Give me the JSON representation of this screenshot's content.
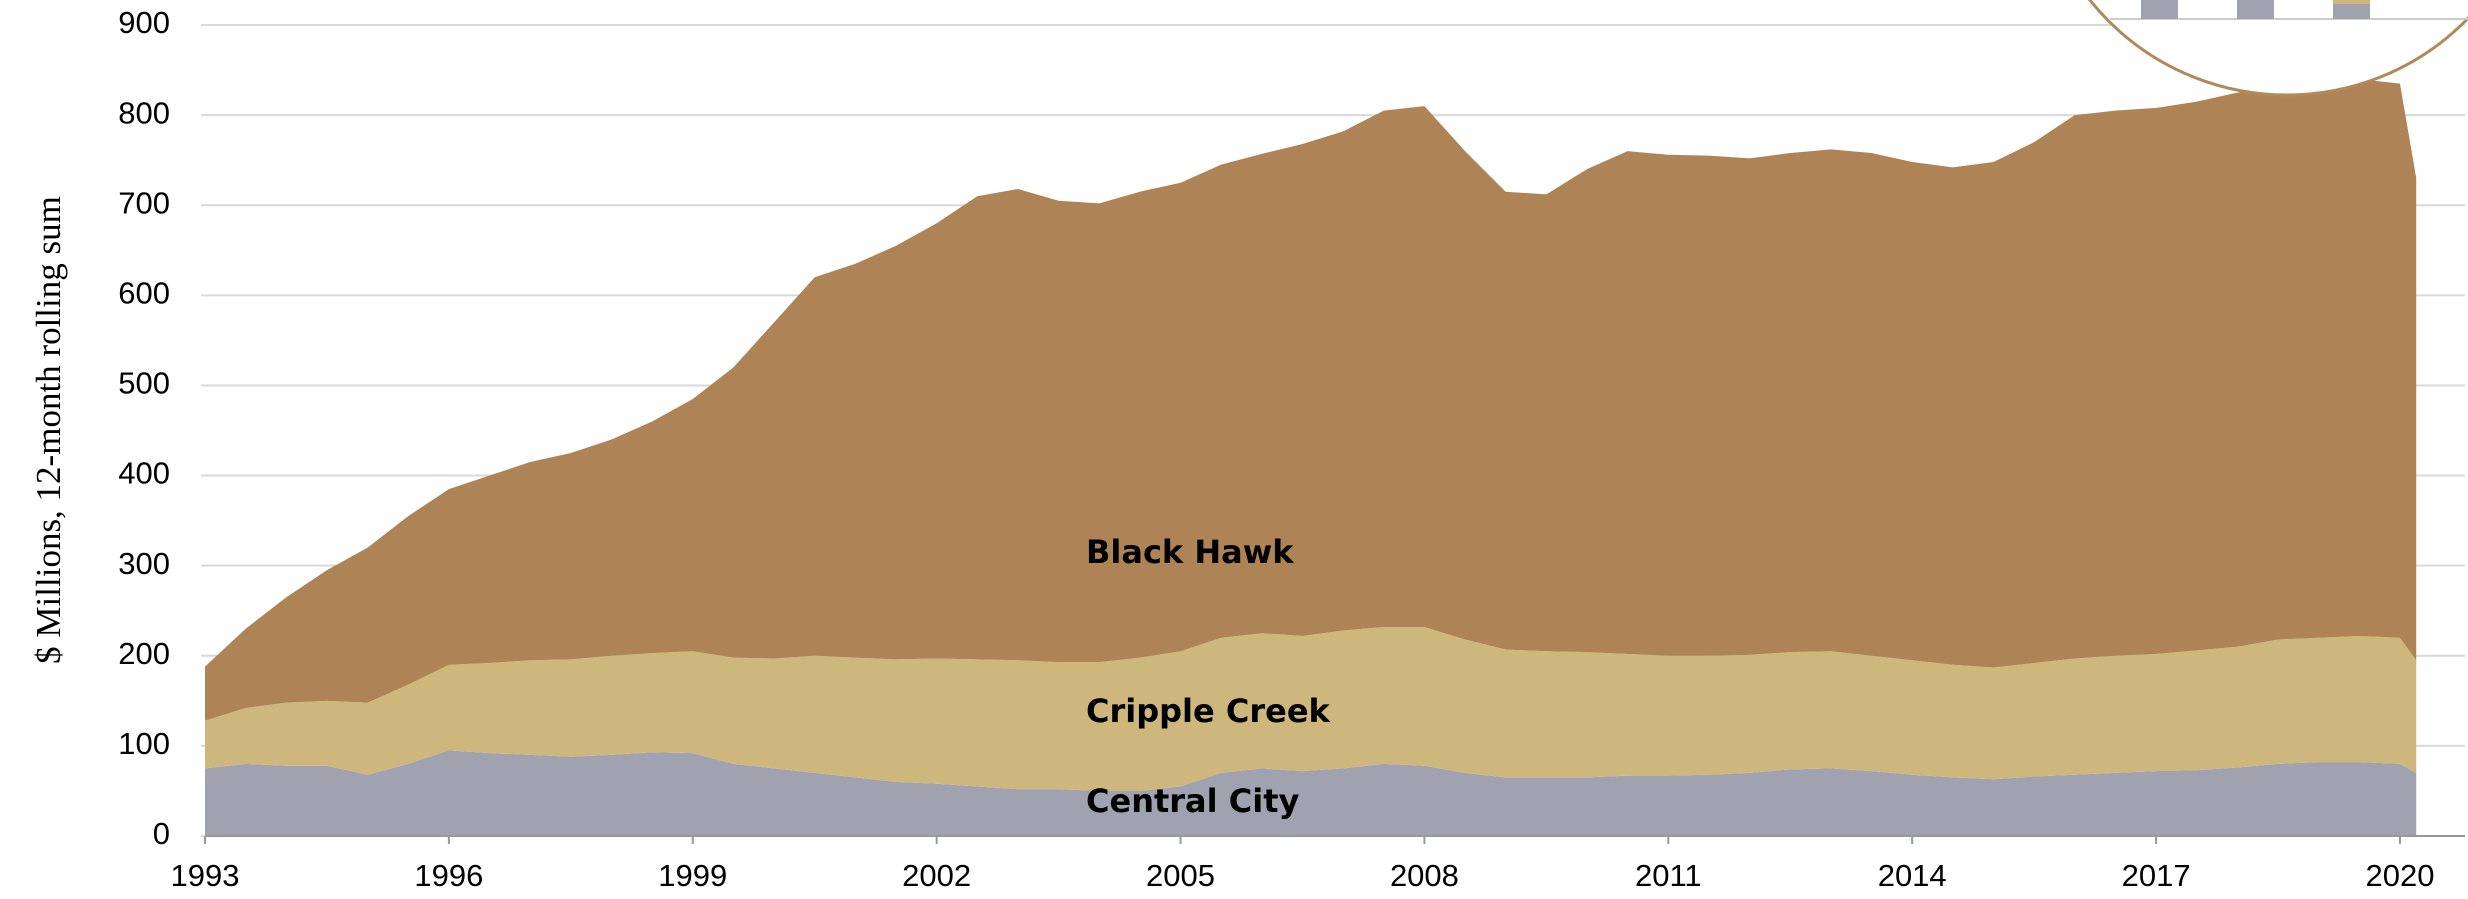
{
  "chart_data": {
    "type": "stacked-area",
    "ylabel": "$ Millions, 12-month rolling sum",
    "x": [
      1993.0,
      1993.5,
      1994.0,
      1994.5,
      1995.0,
      1995.5,
      1996.0,
      1996.5,
      1997.0,
      1997.5,
      1998.0,
      1998.5,
      1999.0,
      1999.5,
      2000.0,
      2000.5,
      2001.0,
      2001.5,
      2002.0,
      2002.5,
      2003.0,
      2003.5,
      2004.0,
      2004.5,
      2005.0,
      2005.5,
      2006.0,
      2006.5,
      2007.0,
      2007.5,
      2008.0,
      2008.5,
      2009.0,
      2009.5,
      2010.0,
      2010.5,
      2011.0,
      2011.5,
      2012.0,
      2012.5,
      2013.0,
      2013.5,
      2014.0,
      2014.5,
      2015.0,
      2015.5,
      2016.0,
      2016.5,
      2017.0,
      2017.5,
      2018.0,
      2018.5,
      2019.0,
      2019.5,
      2020.0,
      2020.2
    ],
    "series": [
      {
        "name": "Central City",
        "color": "#a0a2b0",
        "values": [
          75,
          80,
          78,
          78,
          68,
          80,
          95,
          92,
          90,
          88,
          90,
          93,
          92,
          80,
          75,
          70,
          65,
          60,
          58,
          55,
          52,
          52,
          50,
          50,
          55,
          70,
          75,
          72,
          75,
          80,
          78,
          70,
          65,
          65,
          65,
          67,
          67,
          68,
          70,
          74,
          75,
          72,
          68,
          65,
          63,
          66,
          68,
          70,
          72,
          73,
          76,
          80,
          82,
          82,
          80,
          70
        ]
      },
      {
        "name": "Cripple Creek",
        "color": "#cdb77c",
        "values": [
          53,
          62,
          70,
          72,
          80,
          88,
          95,
          100,
          105,
          108,
          110,
          110,
          113,
          118,
          122,
          130,
          133,
          136,
          139,
          141,
          143,
          141,
          143,
          148,
          150,
          150,
          150,
          150,
          153,
          152,
          154,
          148,
          142,
          140,
          139,
          135,
          133,
          132,
          131,
          130,
          130,
          128,
          127,
          125,
          124,
          126,
          129,
          130,
          130,
          133,
          134,
          138,
          138,
          140,
          140,
          125
        ]
      },
      {
        "name": "Black Hawk",
        "color": "#ae8356",
        "values": [
          60,
          88,
          117,
          145,
          172,
          187,
          195,
          208,
          220,
          229,
          240,
          257,
          280,
          322,
          373,
          420,
          437,
          459,
          483,
          514,
          523,
          512,
          509,
          517,
          520,
          525,
          532,
          546,
          554,
          573,
          578,
          542,
          508,
          507,
          536,
          558,
          556,
          555,
          551,
          554,
          557,
          558,
          553,
          552,
          561,
          578,
          603,
          605,
          606,
          609,
          615,
          614,
          618,
          618,
          615,
          535
        ]
      }
    ],
    "xlim": [
      1993,
      2020.8
    ],
    "xticks": [
      1993,
      1996,
      1999,
      2002,
      2005,
      2008,
      2011,
      2014,
      2017,
      2020
    ],
    "ylim": [
      0,
      900
    ],
    "yticks": [
      0,
      100,
      200,
      300,
      400,
      500,
      600,
      700,
      800,
      900
    ],
    "grid": true
  }
}
